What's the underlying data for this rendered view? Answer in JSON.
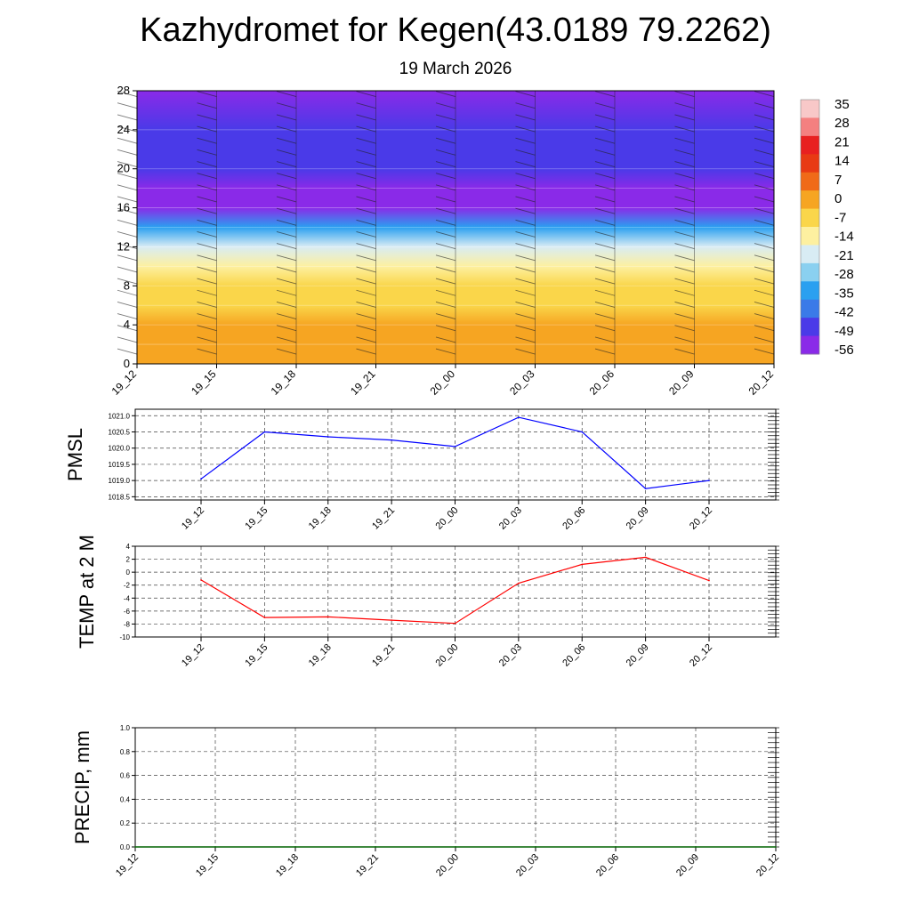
{
  "title": "Kazhydromet for Kegen(43.0189 79.2262)",
  "subtitle": "19 March 2026",
  "time_labels": [
    "19_12",
    "19_15",
    "19_18",
    "19_21",
    "20_00",
    "20_03",
    "20_06",
    "20_09",
    "20_12"
  ],
  "chart_data": [
    {
      "type": "heatmap",
      "name": "temperature-height cross-section",
      "x": [
        "19_12",
        "19_15",
        "19_18",
        "19_21",
        "20_00",
        "20_03",
        "20_06",
        "20_09",
        "20_12"
      ],
      "ylim": [
        0,
        28
      ],
      "yticks": [
        0,
        4,
        8,
        12,
        16,
        20,
        24,
        28
      ],
      "levels": [
        0,
        2,
        4,
        6,
        8,
        10,
        12,
        14,
        16,
        18,
        20,
        24,
        28
      ],
      "temperature_profile": [
        2,
        0,
        -2,
        -5,
        -7,
        -12,
        -22,
        -38,
        -56,
        -54,
        -50,
        -52,
        -55
      ],
      "colorbar": {
        "labels": [
          "35",
          "28",
          "21",
          "14",
          "7",
          "0",
          "-7",
          "-14",
          "-21",
          "-28",
          "-35",
          "-42",
          "-49",
          "-56"
        ],
        "colors": [
          "#f8c8c8",
          "#f48080",
          "#e82020",
          "#e83a14",
          "#f06a18",
          "#f6a522",
          "#fad64a",
          "#fdf0a0",
          "#d8ecf4",
          "#8ad0f0",
          "#2aa0f0",
          "#3a7ae8",
          "#4a3ae8",
          "#8a2ae8"
        ]
      }
    },
    {
      "type": "line",
      "name": "PMSL",
      "ylabel": "PMSL",
      "x": [
        "19_12",
        "19_15",
        "19_18",
        "19_21",
        "20_00",
        "20_03",
        "20_06",
        "20_09",
        "20_12"
      ],
      "values": [
        1019.05,
        1020.5,
        1020.35,
        1020.25,
        1020.05,
        1020.95,
        1020.5,
        1018.75,
        1019.0
      ],
      "ylim": [
        1018.4,
        1021.2
      ],
      "yticks": [
        1018.5,
        1019.0,
        1019.5,
        1020.0,
        1020.5,
        1021.0
      ],
      "ytick_labels": [
        "1018.5",
        "1019.0",
        "1019.5",
        "1020.0",
        "1020.5",
        "1021.0"
      ],
      "color": "#0000ff"
    },
    {
      "type": "line",
      "name": "TEMP at 2 M",
      "ylabel": "TEMP at 2 M",
      "x": [
        "19_12",
        "19_15",
        "19_18",
        "19_21",
        "20_00",
        "20_03",
        "20_06",
        "20_09",
        "20_12"
      ],
      "values": [
        -1.2,
        -7.0,
        -6.9,
        -7.4,
        -7.9,
        -1.7,
        1.2,
        2.3,
        -1.3
      ],
      "ylim": [
        -10,
        4
      ],
      "yticks": [
        -10,
        -8,
        -6,
        -4,
        -2,
        0,
        2,
        4
      ],
      "ytick_labels": [
        "-10",
        "-8",
        "-6",
        "-4",
        "-2",
        "0",
        "2",
        "4"
      ],
      "color": "#ff0000"
    },
    {
      "type": "line",
      "name": "PRECIP, mm",
      "ylabel": "PRECIP, mm",
      "x": [
        "19_12",
        "19_15",
        "19_18",
        "19_21",
        "20_00",
        "20_03",
        "20_06",
        "20_09",
        "20_12"
      ],
      "values": [
        0,
        0,
        0,
        0,
        0,
        0,
        0,
        0,
        0
      ],
      "ylim": [
        0,
        1
      ],
      "yticks": [
        0,
        0.2,
        0.4,
        0.6,
        0.8,
        1.0
      ],
      "ytick_labels": [
        "0.0",
        "0.2",
        "0.4",
        "0.6",
        "0.8",
        "1.0"
      ],
      "color": "#006400"
    }
  ]
}
